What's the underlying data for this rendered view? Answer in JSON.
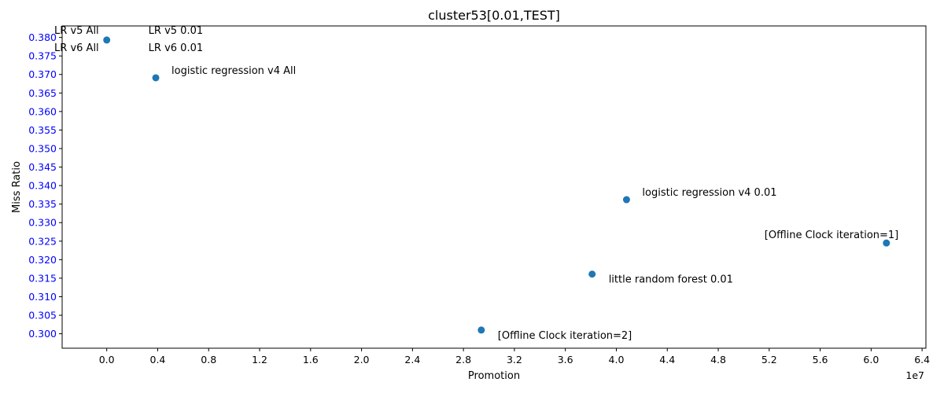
{
  "chart_data": {
    "type": "scatter",
    "title": "cluster53[0.01,TEST]",
    "xlabel": "Promotion",
    "ylabel": "Miss Ratio",
    "x_offset_text": "1e7",
    "xlim": [
      -3500000,
      64300000
    ],
    "ylim": [
      0.2961,
      0.3831
    ],
    "x_ticks": [
      0,
      4000000,
      8000000,
      12000000,
      16000000,
      20000000,
      24000000,
      28000000,
      32000000,
      36000000,
      40000000,
      44000000,
      48000000,
      52000000,
      56000000,
      60000000,
      64000000
    ],
    "x_tick_labels": [
      "0.0",
      "0.4",
      "0.8",
      "1.2",
      "1.6",
      "2.0",
      "2.4",
      "2.8",
      "3.2",
      "3.6",
      "4.0",
      "4.4",
      "4.8",
      "5.2",
      "5.6",
      "6.0",
      "6.4"
    ],
    "y_ticks": [
      0.3,
      0.305,
      0.31,
      0.315,
      0.32,
      0.325,
      0.33,
      0.335,
      0.34,
      0.345,
      0.35,
      0.355,
      0.36,
      0.365,
      0.37,
      0.375,
      0.38
    ],
    "y_tick_labels": [
      "0.300",
      "0.305",
      "0.310",
      "0.315",
      "0.320",
      "0.325",
      "0.330",
      "0.335",
      "0.340",
      "0.345",
      "0.350",
      "0.355",
      "0.360",
      "0.365",
      "0.370",
      "0.375",
      "0.380"
    ],
    "y_tick_color": "#0000ff",
    "marker_color": "#1f77b4",
    "grid": false,
    "points": [
      {
        "x": 0,
        "y": 0.3793,
        "label": "LR v5 All",
        "label_pos": "upper-left"
      },
      {
        "x": 0,
        "y": 0.3793,
        "label": "LR v6 All",
        "label_pos": "lower-left"
      },
      {
        "x": 0,
        "y": 0.3793,
        "label": "LR v5 0.01",
        "label_pos": "upper-right"
      },
      {
        "x": 0,
        "y": 0.3793,
        "label": "LR v6 0.01",
        "label_pos": "lower-right"
      },
      {
        "x": 3850000,
        "y": 0.3691,
        "label": "logistic regression v4 All",
        "label_pos": "right"
      },
      {
        "x": 40800000,
        "y": 0.3362,
        "label": "logistic regression v4 0.01",
        "label_pos": "right"
      },
      {
        "x": 61200000,
        "y": 0.3245,
        "label": "[Offline Clock iteration=1]",
        "label_pos": "above"
      },
      {
        "x": 38100000,
        "y": 0.3161,
        "label": "little random forest 0.01",
        "label_pos": "below-right"
      },
      {
        "x": 29400000,
        "y": 0.301,
        "label": "[Offline Clock iteration=2]",
        "label_pos": "below-right"
      }
    ]
  }
}
